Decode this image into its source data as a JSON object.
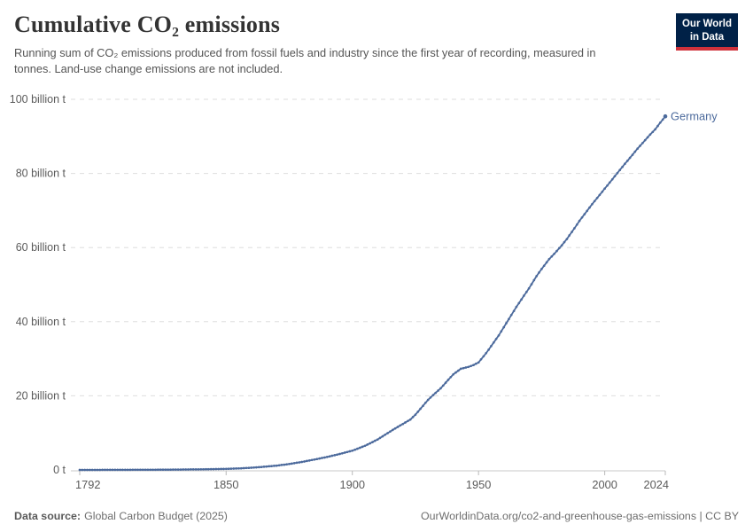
{
  "header": {
    "title": "Cumulative CO₂ emissions",
    "subtitle": "Running sum of CO₂ emissions produced from fossil fuels and industry since the first year of recording, measured in tonnes. Land-use change emissions are not included.",
    "logo": {
      "line1": "Our World",
      "line2": "in Data"
    }
  },
  "footer": {
    "datasource_label": "Data source:",
    "datasource_value": "Global Carbon Budget (2025)",
    "attribution": "OurWorldinData.org/co2-and-greenhouse-gas-emissions | CC BY"
  },
  "colors": {
    "series_blue": "#4C6A9C",
    "grid": "#dedede",
    "axis": "#c8c8c8",
    "tick": "#b9b9b9",
    "text_gray": "#5b5b5b",
    "logo_navy": "#002147",
    "logo_red": "#cf313b"
  },
  "chart_data": {
    "type": "line",
    "title": "Cumulative CO₂ emissions",
    "xlabel": "",
    "ylabel": "",
    "values_unit": "billion tonnes of CO₂",
    "xlim": [
      1792,
      2024
    ],
    "ylim": [
      0,
      100
    ],
    "grid": "horizontal-dashed",
    "legend_position": "line-end-label",
    "x_ticks": [
      1792,
      1850,
      1900,
      1950,
      2000,
      2024
    ],
    "y_ticks": [
      {
        "value": 0,
        "label": "0 t"
      },
      {
        "value": 20,
        "label": "20 billion t"
      },
      {
        "value": 40,
        "label": "40 billion t"
      },
      {
        "value": 60,
        "label": "60 billion t"
      },
      {
        "value": 80,
        "label": "80 billion t"
      },
      {
        "value": 100,
        "label": "100 billion t"
      }
    ],
    "series": [
      {
        "name": "Germany",
        "color": "#4C6A9C",
        "points": [
          [
            1792,
            0.001
          ],
          [
            1800,
            0.01
          ],
          [
            1810,
            0.03
          ],
          [
            1820,
            0.05
          ],
          [
            1830,
            0.09
          ],
          [
            1840,
            0.16
          ],
          [
            1850,
            0.28
          ],
          [
            1855,
            0.4
          ],
          [
            1860,
            0.6
          ],
          [
            1865,
            0.85
          ],
          [
            1870,
            1.15
          ],
          [
            1875,
            1.6
          ],
          [
            1880,
            2.15
          ],
          [
            1885,
            2.8
          ],
          [
            1890,
            3.5
          ],
          [
            1895,
            4.3
          ],
          [
            1900,
            5.2
          ],
          [
            1905,
            6.5
          ],
          [
            1910,
            8.2
          ],
          [
            1913,
            9.5
          ],
          [
            1916,
            10.8
          ],
          [
            1920,
            12.4
          ],
          [
            1923,
            13.6
          ],
          [
            1925,
            14.9
          ],
          [
            1928,
            17.3
          ],
          [
            1930,
            18.9
          ],
          [
            1932,
            20.2
          ],
          [
            1935,
            22.0
          ],
          [
            1938,
            24.3
          ],
          [
            1940,
            25.8
          ],
          [
            1943,
            27.3
          ],
          [
            1946,
            27.8
          ],
          [
            1948,
            28.3
          ],
          [
            1950,
            29.0
          ],
          [
            1953,
            31.5
          ],
          [
            1955,
            33.4
          ],
          [
            1958,
            36.3
          ],
          [
            1960,
            38.5
          ],
          [
            1963,
            41.8
          ],
          [
            1965,
            44.0
          ],
          [
            1968,
            47.0
          ],
          [
            1970,
            49.0
          ],
          [
            1973,
            52.3
          ],
          [
            1975,
            54.2
          ],
          [
            1978,
            56.9
          ],
          [
            1980,
            58.3
          ],
          [
            1983,
            60.6
          ],
          [
            1985,
            62.3
          ],
          [
            1988,
            65.2
          ],
          [
            1990,
            67.2
          ],
          [
            1993,
            69.9
          ],
          [
            1995,
            71.7
          ],
          [
            1998,
            74.2
          ],
          [
            2000,
            75.9
          ],
          [
            2003,
            78.4
          ],
          [
            2005,
            80.1
          ],
          [
            2008,
            82.6
          ],
          [
            2010,
            84.2
          ],
          [
            2013,
            86.7
          ],
          [
            2015,
            88.2
          ],
          [
            2018,
            90.5
          ],
          [
            2020,
            91.9
          ],
          [
            2022,
            93.7
          ],
          [
            2024,
            95.4
          ]
        ]
      }
    ]
  }
}
